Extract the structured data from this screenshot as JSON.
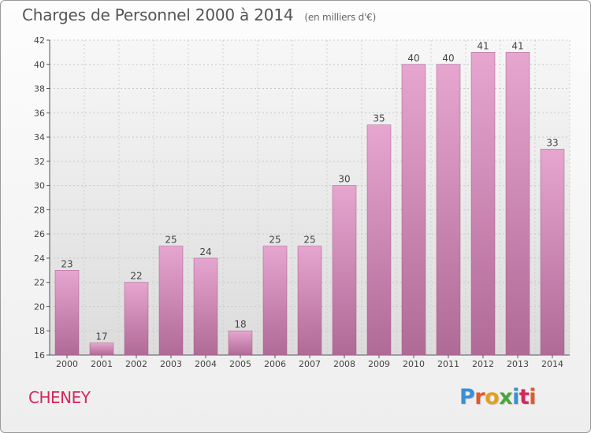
{
  "chart_data": {
    "type": "bar",
    "title": "Charges de Personnel 2000 à 2014",
    "subtitle": "(en milliers d'€)",
    "categories": [
      "2000",
      "2001",
      "2002",
      "2003",
      "2004",
      "2005",
      "2006",
      "2007",
      "2008",
      "2009",
      "2010",
      "2011",
      "2012",
      "2013",
      "2014"
    ],
    "values": [
      23,
      17,
      22,
      25,
      24,
      18,
      25,
      25,
      30,
      35,
      40,
      40,
      41,
      41,
      33
    ],
    "ylim": [
      16,
      42
    ],
    "yticks": [
      16,
      18,
      20,
      22,
      24,
      26,
      28,
      30,
      32,
      34,
      36,
      38,
      40,
      42
    ],
    "grid": true,
    "bar_color": "#c873a4"
  },
  "footer": {
    "commune": "CHENEY",
    "logo": "Proxiti"
  },
  "colors": {
    "commune_text": "#d4285c",
    "logo_letters": [
      "#3b8fd4",
      "#e05a2b",
      "#e0a020",
      "#4aa63c",
      "#3b8fd4",
      "#d4285c",
      "#e05a2b"
    ]
  }
}
